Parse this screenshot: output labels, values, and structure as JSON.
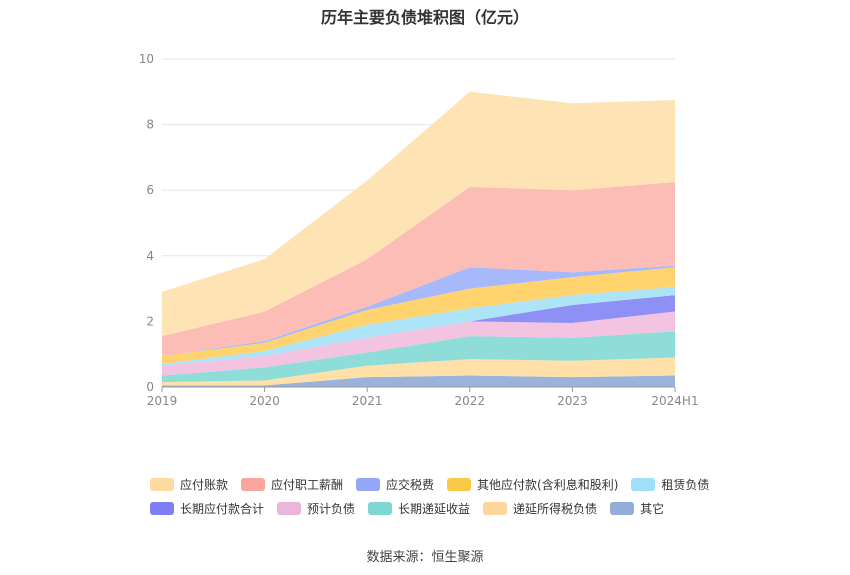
{
  "chart_data": {
    "type": "area",
    "stacked": true,
    "title": "历年主要负债堆积图（亿元）",
    "categories": [
      "2019",
      "2020",
      "2021",
      "2022",
      "2023",
      "2024H1"
    ],
    "ylim": [
      0,
      10
    ],
    "yticks": [
      0,
      2,
      4,
      6,
      8,
      10
    ],
    "grid": true,
    "legend_position": "bottom",
    "series": [
      {
        "name": "其它",
        "color": "#9ab3db",
        "values": [
          0.05,
          0.05,
          0.3,
          0.35,
          0.3,
          0.35
        ]
      },
      {
        "name": "递延所得税负债",
        "color": "#ffe0a8",
        "values": [
          0.1,
          0.15,
          0.35,
          0.5,
          0.5,
          0.55
        ]
      },
      {
        "name": "长期递延收益",
        "color": "#8fddd9",
        "values": [
          0.2,
          0.4,
          0.4,
          0.7,
          0.7,
          0.8
        ]
      },
      {
        "name": "预计负债",
        "color": "#f2c4e2",
        "values": [
          0.3,
          0.35,
          0.45,
          0.45,
          0.45,
          0.6
        ]
      },
      {
        "name": "长期应付款合计",
        "color": "#8e90f5",
        "values": [
          0.0,
          0.0,
          0.0,
          0.0,
          0.55,
          0.5
        ]
      },
      {
        "name": "租赁负债",
        "color": "#ade4f8",
        "values": [
          0.05,
          0.15,
          0.4,
          0.4,
          0.3,
          0.25
        ]
      },
      {
        "name": "其他应付款(含利息和股利)",
        "color": "#ffd46e",
        "values": [
          0.25,
          0.25,
          0.45,
          0.6,
          0.55,
          0.6
        ]
      },
      {
        "name": "应交税费",
        "color": "#a8b9fb",
        "values": [
          0.0,
          0.05,
          0.1,
          0.65,
          0.15,
          0.05
        ]
      },
      {
        "name": "应付职工薪酬",
        "color": "#fdbdb7",
        "values": [
          0.6,
          0.9,
          1.45,
          2.45,
          2.5,
          2.55
        ]
      },
      {
        "name": "应付账款",
        "color": "#fee3b5",
        "values": [
          1.35,
          1.6,
          2.4,
          2.9,
          2.65,
          2.5
        ]
      }
    ]
  },
  "legend_rows": [
    [
      {
        "label": "应付账款",
        "color": "#fddba2"
      },
      {
        "label": "应付职工薪酬",
        "color": "#fba59e"
      },
      {
        "label": "应交税费",
        "color": "#93a8f6"
      },
      {
        "label": "其他应付款(含利息和股利)",
        "color": "#fcc84a"
      },
      {
        "label": "租赁负债",
        "color": "#9fdff7"
      }
    ],
    [
      {
        "label": "长期应付款合计",
        "color": "#7e7ff5"
      },
      {
        "label": "预计负债",
        "color": "#ecb5da"
      },
      {
        "label": "长期递延收益",
        "color": "#7fd6d3"
      },
      {
        "label": "递延所得税负债",
        "color": "#fed59b"
      },
      {
        "label": "其它",
        "color": "#92add8"
      }
    ]
  ],
  "source": "数据来源：恒生聚源"
}
